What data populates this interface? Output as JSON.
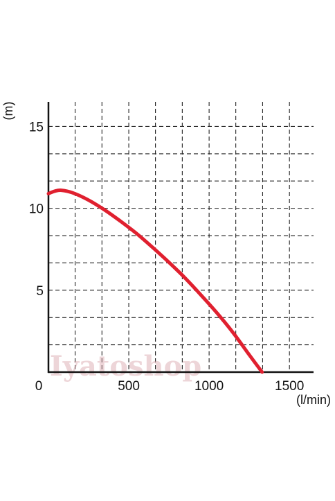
{
  "chart_data": {
    "type": "line",
    "x_unit": "(l/min)",
    "y_unit": "(m)",
    "xlim": [
      0,
      1650
    ],
    "ylim": [
      0,
      16.5
    ],
    "x_ticks": [
      0,
      500,
      1000,
      1500
    ],
    "y_ticks": [
      5,
      10,
      15
    ],
    "grid": true,
    "grid_style": "dashed",
    "x_grid": [
      166,
      333,
      500,
      666,
      833,
      1000,
      1166,
      1333,
      1500
    ],
    "y_grid": [
      1.67,
      3.33,
      5,
      6.67,
      8.33,
      10,
      11.67,
      13.33,
      15
    ],
    "series": [
      {
        "color": "#e0202f",
        "x": [
          0,
          40,
          80,
          150,
          250,
          350,
          450,
          550,
          650,
          750,
          850,
          950,
          1050,
          1150,
          1250,
          1330
        ],
        "y": [
          10.9,
          11.05,
          11.1,
          10.95,
          10.5,
          9.9,
          9.2,
          8.45,
          7.6,
          6.7,
          5.75,
          4.7,
          3.6,
          2.4,
          1.05,
          0
        ]
      }
    ]
  },
  "watermark": "Iyatoshop"
}
